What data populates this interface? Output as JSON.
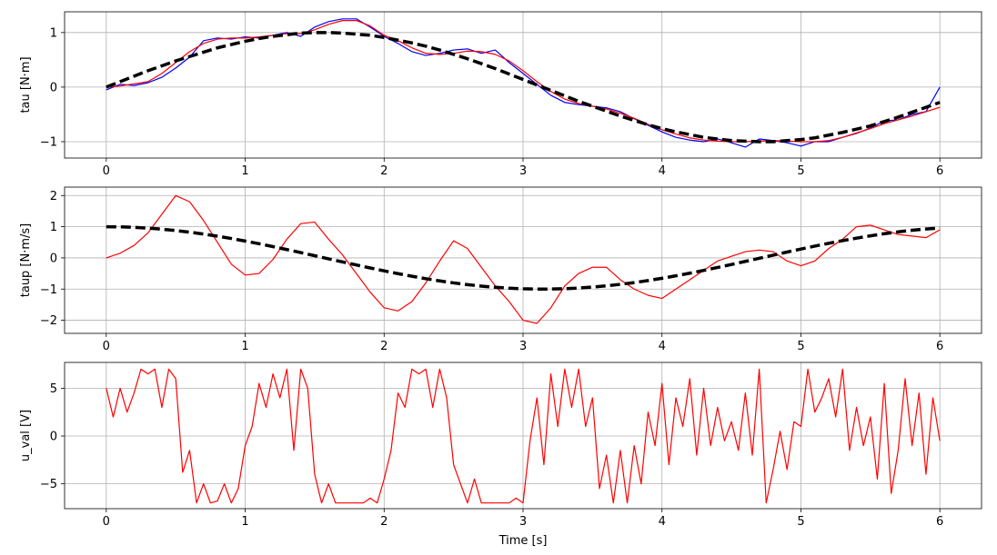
{
  "chart_data": [
    {
      "type": "line",
      "ylabel": "tau [N·m]",
      "grid": true,
      "xlim": [
        -0.3,
        6.3
      ],
      "ylim": [
        -1.3,
        1.38
      ],
      "xticks": [
        0,
        1,
        2,
        3,
        4,
        5,
        6
      ],
      "yticks": [
        {
          "value": -1,
          "label": "−1"
        },
        0,
        1
      ],
      "x": [
        0,
        0.1,
        0.2,
        0.3,
        0.4,
        0.5,
        0.6,
        0.7,
        0.8,
        0.9,
        1.0,
        1.1,
        1.2,
        1.3,
        1.4,
        1.5,
        1.6,
        1.7,
        1.8,
        1.9,
        2.0,
        2.1,
        2.2,
        2.3,
        2.4,
        2.5,
        2.6,
        2.7,
        2.8,
        2.9,
        3.0,
        3.1,
        3.2,
        3.3,
        3.4,
        3.5,
        3.6,
        3.7,
        3.8,
        3.9,
        4.0,
        4.1,
        4.2,
        4.3,
        4.4,
        4.5,
        4.6,
        4.7,
        4.8,
        4.9,
        5.0,
        5.1,
        5.2,
        5.3,
        5.4,
        5.5,
        5.6,
        5.7,
        5.8,
        5.9,
        6.0
      ],
      "series": [
        {
          "color": "#0000ff",
          "values": [
            -0.05,
            0.05,
            0.03,
            0.08,
            0.18,
            0.35,
            0.55,
            0.85,
            0.9,
            0.88,
            0.92,
            0.9,
            0.95,
            1.0,
            0.93,
            1.1,
            1.2,
            1.25,
            1.25,
            1.1,
            0.93,
            0.8,
            0.65,
            0.58,
            0.62,
            0.68,
            0.7,
            0.62,
            0.68,
            0.45,
            0.25,
            0.05,
            -0.15,
            -0.28,
            -0.32,
            -0.35,
            -0.38,
            -0.45,
            -0.58,
            -0.7,
            -0.82,
            -0.92,
            -0.97,
            -1.0,
            -0.95,
            -1.02,
            -1.1,
            -0.95,
            -0.98,
            -1.02,
            -1.08,
            -1.0,
            -1.0,
            -0.92,
            -0.85,
            -0.75,
            -0.62,
            -0.6,
            -0.5,
            -0.45,
            0
          ]
        },
        {
          "color": "#ff0000",
          "values": [
            0,
            0.02,
            0.06,
            0.1,
            0.25,
            0.45,
            0.65,
            0.8,
            0.88,
            0.9,
            0.9,
            0.92,
            0.95,
            0.98,
            0.98,
            1.05,
            1.15,
            1.22,
            1.22,
            1.12,
            0.95,
            0.85,
            0.72,
            0.62,
            0.6,
            0.62,
            0.66,
            0.65,
            0.6,
            0.48,
            0.3,
            0.1,
            -0.08,
            -0.22,
            -0.3,
            -0.35,
            -0.4,
            -0.48,
            -0.57,
            -0.68,
            -0.78,
            -0.86,
            -0.93,
            -0.97,
            -0.99,
            -1.0,
            -1.0,
            -0.99,
            -0.98,
            -0.99,
            -1.0,
            -1.0,
            -0.98,
            -0.92,
            -0.84,
            -0.76,
            -0.67,
            -0.6,
            -0.53,
            -0.45,
            -0.37
          ]
        },
        {
          "color": "#000000",
          "dashed": true,
          "values": [
            0,
            0.1,
            0.2,
            0.3,
            0.39,
            0.48,
            0.56,
            0.64,
            0.72,
            0.78,
            0.84,
            0.89,
            0.93,
            0.96,
            0.99,
            1.0,
            1.0,
            0.99,
            0.97,
            0.95,
            0.91,
            0.86,
            0.81,
            0.75,
            0.68,
            0.6,
            0.52,
            0.43,
            0.34,
            0.24,
            0.14,
            0.04,
            -0.06,
            -0.16,
            -0.26,
            -0.35,
            -0.44,
            -0.53,
            -0.61,
            -0.69,
            -0.76,
            -0.82,
            -0.87,
            -0.92,
            -0.95,
            -0.98,
            -0.99,
            -1.0,
            -1.0,
            -0.98,
            -0.96,
            -0.93,
            -0.88,
            -0.83,
            -0.77,
            -0.71,
            -0.63,
            -0.55,
            -0.46,
            -0.37,
            -0.28
          ]
        }
      ]
    },
    {
      "type": "line",
      "ylabel": "taup [N·m/s]",
      "grid": true,
      "xlim": [
        -0.3,
        6.3
      ],
      "ylim": [
        -2.42,
        2.27
      ],
      "xticks": [
        0,
        1,
        2,
        3,
        4,
        5,
        6
      ],
      "yticks": [
        {
          "value": -2,
          "label": "−2"
        },
        {
          "value": -1,
          "label": "−1"
        },
        0,
        1,
        2
      ],
      "x": [
        0,
        0.1,
        0.2,
        0.3,
        0.4,
        0.5,
        0.6,
        0.7,
        0.8,
        0.9,
        1.0,
        1.1,
        1.2,
        1.3,
        1.4,
        1.5,
        1.6,
        1.7,
        1.8,
        1.9,
        2.0,
        2.1,
        2.2,
        2.3,
        2.4,
        2.5,
        2.6,
        2.7,
        2.8,
        2.9,
        3.0,
        3.1,
        3.2,
        3.3,
        3.4,
        3.5,
        3.6,
        3.7,
        3.8,
        3.9,
        4.0,
        4.1,
        4.2,
        4.3,
        4.4,
        4.5,
        4.6,
        4.7,
        4.8,
        4.9,
        5.0,
        5.1,
        5.2,
        5.3,
        5.4,
        5.5,
        5.6,
        5.7,
        5.8,
        5.9,
        6.0
      ],
      "series": [
        {
          "color": "#ff0000",
          "values": [
            0,
            0.15,
            0.4,
            0.8,
            1.4,
            2.0,
            1.8,
            1.2,
            0.5,
            -0.2,
            -0.55,
            -0.5,
            -0.05,
            0.6,
            1.1,
            1.15,
            0.6,
            0.1,
            -0.5,
            -1.1,
            -1.6,
            -1.7,
            -1.4,
            -0.8,
            -0.1,
            0.55,
            0.3,
            -0.3,
            -0.9,
            -1.4,
            -2.0,
            -2.1,
            -1.6,
            -0.9,
            -0.5,
            -0.3,
            -0.3,
            -0.7,
            -1.0,
            -1.2,
            -1.3,
            -1.0,
            -0.7,
            -0.4,
            -0.1,
            0.05,
            0.2,
            0.25,
            0.2,
            -0.1,
            -0.25,
            -0.1,
            0.3,
            0.6,
            1.0,
            1.05,
            0.9,
            0.75,
            0.7,
            0.65,
            0.9
          ]
        },
        {
          "color": "#000000",
          "dashed": true,
          "values": [
            1,
            0.995,
            0.98,
            0.955,
            0.921,
            0.878,
            0.825,
            0.765,
            0.697,
            0.622,
            0.54,
            0.454,
            0.362,
            0.267,
            0.17,
            0.071,
            -0.029,
            -0.129,
            -0.227,
            -0.323,
            -0.416,
            -0.505,
            -0.589,
            -0.666,
            -0.737,
            -0.801,
            -0.857,
            -0.904,
            -0.942,
            -0.971,
            -0.99,
            -0.999,
            -0.998,
            -0.987,
            -0.967,
            -0.936,
            -0.897,
            -0.848,
            -0.791,
            -0.726,
            -0.654,
            -0.575,
            -0.49,
            -0.401,
            -0.307,
            -0.211,
            -0.112,
            -0.012,
            0.087,
            0.187,
            0.284,
            0.378,
            0.468,
            0.554,
            0.634,
            0.709,
            0.776,
            0.835,
            0.886,
            0.927,
            0.96
          ]
        }
      ]
    },
    {
      "type": "line",
      "ylabel": "u_val [V]",
      "xlabel": "Time [s]",
      "grid": true,
      "xlim": [
        -0.3,
        6.3
      ],
      "ylim": [
        -7.6,
        7.7
      ],
      "xticks": [
        0,
        1,
        2,
        3,
        4,
        5,
        6
      ],
      "yticks": [
        {
          "value": -5,
          "label": "−5"
        },
        0,
        5
      ],
      "x": [
        0,
        0.05,
        0.1,
        0.15,
        0.2,
        0.25,
        0.3,
        0.35,
        0.4,
        0.45,
        0.5,
        0.55,
        0.6,
        0.65,
        0.7,
        0.75,
        0.8,
        0.85,
        0.9,
        0.95,
        1.0,
        1.05,
        1.1,
        1.15,
        1.2,
        1.25,
        1.3,
        1.35,
        1.4,
        1.45,
        1.5,
        1.55,
        1.6,
        1.65,
        1.7,
        1.75,
        1.8,
        1.85,
        1.9,
        1.95,
        2.0,
        2.05,
        2.1,
        2.15,
        2.2,
        2.25,
        2.3,
        2.35,
        2.4,
        2.45,
        2.5,
        2.55,
        2.6,
        2.65,
        2.7,
        2.75,
        2.8,
        2.85,
        2.9,
        2.95,
        3.0,
        3.05,
        3.1,
        3.15,
        3.2,
        3.25,
        3.3,
        3.35,
        3.4,
        3.45,
        3.5,
        3.55,
        3.6,
        3.65,
        3.7,
        3.75,
        3.8,
        3.85,
        3.9,
        3.95,
        4.0,
        4.05,
        4.1,
        4.15,
        4.2,
        4.25,
        4.3,
        4.35,
        4.4,
        4.45,
        4.5,
        4.55,
        4.6,
        4.65,
        4.7,
        4.75,
        4.8,
        4.85,
        4.9,
        4.95,
        5.0,
        5.05,
        5.1,
        5.15,
        5.2,
        5.25,
        5.3,
        5.35,
        5.4,
        5.45,
        5.5,
        5.55,
        5.6,
        5.65,
        5.7,
        5.75,
        5.8,
        5.85,
        5.9,
        5.95,
        6.0
      ],
      "series": [
        {
          "color": "#ff0000",
          "values": [
            5,
            2,
            5,
            2.5,
            4.5,
            7,
            6.5,
            7,
            3,
            7,
            6,
            -3.8,
            -1.5,
            -7,
            -5,
            -7,
            -6.8,
            -5,
            -7,
            -5.5,
            -1,
            1,
            5.5,
            3,
            6.5,
            4,
            7,
            -1.5,
            7,
            5,
            -4,
            -7,
            -5,
            -7,
            -7,
            -7,
            -7,
            -7,
            -6.5,
            -7,
            -4.5,
            -1.5,
            4.5,
            3,
            7,
            6.5,
            7,
            3,
            7,
            4,
            -3,
            -5,
            -7,
            -4.5,
            -7,
            -7,
            -7,
            -7,
            -7,
            -6.5,
            -7,
            -0.5,
            4,
            -3,
            6.5,
            1,
            7,
            3,
            7,
            1,
            4,
            -5.5,
            -2,
            -7,
            -1.5,
            -7,
            -1,
            -5,
            2.5,
            -1,
            5.5,
            -3,
            4,
            1,
            6,
            -2,
            5,
            -1,
            3,
            -0.5,
            1.5,
            -1.5,
            4.5,
            -2,
            7,
            -7,
            -3.5,
            0.5,
            -3.5,
            1.5,
            1,
            7,
            2.5,
            4,
            6,
            2,
            7,
            -1.5,
            3,
            -1,
            2,
            -4.5,
            5.5,
            -6,
            -1.5,
            6,
            -1,
            4.5,
            -4,
            4,
            -0.5
          ]
        }
      ]
    }
  ]
}
